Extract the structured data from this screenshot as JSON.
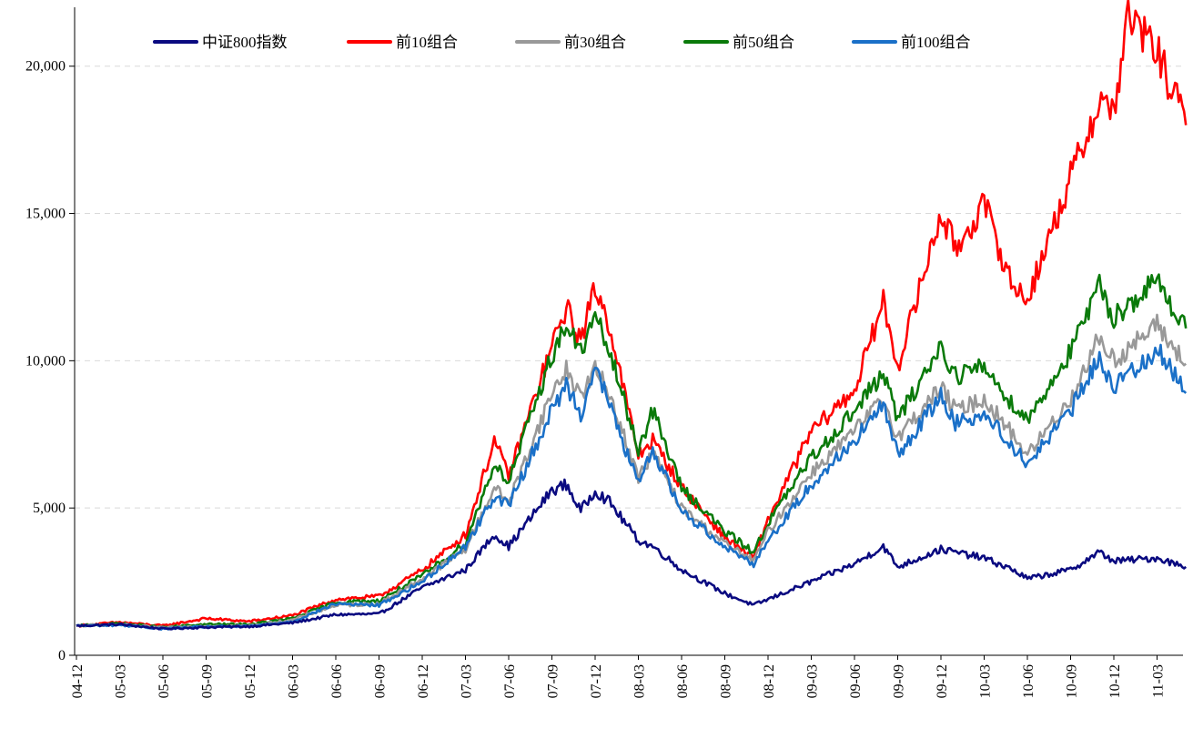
{
  "chart_data": {
    "type": "line",
    "title": "",
    "xlabel": "",
    "ylabel": "",
    "ylim": [
      0,
      22000
    ],
    "y_ticks": [
      0,
      5000,
      10000,
      15000,
      20000
    ],
    "y_tick_labels": [
      "0",
      "5,000",
      "10,000",
      "15,000",
      "20,000"
    ],
    "x_tick_labels": [
      "04-12",
      "05-03",
      "05-06",
      "05-09",
      "05-12",
      "06-03",
      "06-06",
      "06-09",
      "06-12",
      "07-03",
      "07-06",
      "07-09",
      "07-12",
      "08-03",
      "08-06",
      "08-09",
      "08-12",
      "09-03",
      "09-06",
      "09-09",
      "09-12",
      "10-03",
      "10-06",
      "10-09",
      "10-12",
      "11-03"
    ],
    "x_range": [
      "2004-12",
      "2011-05"
    ],
    "grid": "horizontal-dashed",
    "legend_position": "top",
    "series": [
      {
        "name": "中证800指数",
        "color": "#0a0a80",
        "points": [
          [
            "04-12",
            1000
          ],
          [
            "05-03",
            1050
          ],
          [
            "05-06",
            900
          ],
          [
            "05-09",
            950
          ],
          [
            "05-12",
            980
          ],
          [
            "06-03",
            1100
          ],
          [
            "06-06",
            1380
          ],
          [
            "06-09",
            1400
          ],
          [
            "06-12",
            2300
          ],
          [
            "07-03",
            2900
          ],
          [
            "07-05",
            4100
          ],
          [
            "07-06",
            3700
          ],
          [
            "07-09",
            5600
          ],
          [
            "07-10",
            5800
          ],
          [
            "07-11",
            4900
          ],
          [
            "07-12",
            5600
          ],
          [
            "08-01",
            5200
          ],
          [
            "08-03",
            3900
          ],
          [
            "08-04",
            3700
          ],
          [
            "08-06",
            2900
          ],
          [
            "08-09",
            2100
          ],
          [
            "08-11",
            1700
          ],
          [
            "08-12",
            1900
          ],
          [
            "09-03",
            2500
          ],
          [
            "09-06",
            3100
          ],
          [
            "09-08",
            3700
          ],
          [
            "09-09",
            3000
          ],
          [
            "09-12",
            3600
          ],
          [
            "10-01",
            3500
          ],
          [
            "10-03",
            3300
          ],
          [
            "10-05",
            2900
          ],
          [
            "10-06",
            2600
          ],
          [
            "10-09",
            2900
          ],
          [
            "10-11",
            3500
          ],
          [
            "10-12",
            3200
          ],
          [
            "11-03",
            3300
          ],
          [
            "11-05",
            3000
          ]
        ]
      },
      {
        "name": "前10组合",
        "color": "#ff0000",
        "points": [
          [
            "04-12",
            1000
          ],
          [
            "05-03",
            1120
          ],
          [
            "05-06",
            1000
          ],
          [
            "05-09",
            1250
          ],
          [
            "05-12",
            1150
          ],
          [
            "06-03",
            1350
          ],
          [
            "06-06",
            1900
          ],
          [
            "06-09",
            2000
          ],
          [
            "06-12",
            2900
          ],
          [
            "07-03",
            4100
          ],
          [
            "07-05",
            7300
          ],
          [
            "07-06",
            6100
          ],
          [
            "07-09",
            10500
          ],
          [
            "07-10",
            11800
          ],
          [
            "07-11",
            10700
          ],
          [
            "07-12",
            12500
          ],
          [
            "08-01",
            11200
          ],
          [
            "08-03",
            6800
          ],
          [
            "08-04",
            7300
          ],
          [
            "08-06",
            5700
          ],
          [
            "08-09",
            4000
          ],
          [
            "08-11",
            3300
          ],
          [
            "08-12",
            4600
          ],
          [
            "09-03",
            7600
          ],
          [
            "09-06",
            9000
          ],
          [
            "09-08",
            12000
          ],
          [
            "09-09",
            9800
          ],
          [
            "09-12",
            15000
          ],
          [
            "10-01",
            13800
          ],
          [
            "10-03",
            15300
          ],
          [
            "10-05",
            12500
          ],
          [
            "10-06",
            12100
          ],
          [
            "10-09",
            16200
          ],
          [
            "10-11",
            18800
          ],
          [
            "10-12",
            18500
          ],
          [
            "11-01",
            21700
          ],
          [
            "11-03",
            20500
          ],
          [
            "11-05",
            18000
          ]
        ]
      },
      {
        "name": "前30组合",
        "color": "#999999",
        "points": [
          [
            "04-12",
            1000
          ],
          [
            "05-03",
            1050
          ],
          [
            "05-06",
            930
          ],
          [
            "05-09",
            1000
          ],
          [
            "05-12",
            1000
          ],
          [
            "06-03",
            1200
          ],
          [
            "06-06",
            1700
          ],
          [
            "06-09",
            1750
          ],
          [
            "06-12",
            2600
          ],
          [
            "07-03",
            3600
          ],
          [
            "07-05",
            5700
          ],
          [
            "07-06",
            5200
          ],
          [
            "07-09",
            8900
          ],
          [
            "07-10",
            9700
          ],
          [
            "07-11",
            8800
          ],
          [
            "07-12",
            9700
          ],
          [
            "08-01",
            8900
          ],
          [
            "08-03",
            6000
          ],
          [
            "08-04",
            6900
          ],
          [
            "08-06",
            5000
          ],
          [
            "08-09",
            3800
          ],
          [
            "08-11",
            3200
          ],
          [
            "08-12",
            4200
          ],
          [
            "09-03",
            6200
          ],
          [
            "09-06",
            7600
          ],
          [
            "09-08",
            8700
          ],
          [
            "09-09",
            7400
          ],
          [
            "09-12",
            9100
          ],
          [
            "10-01",
            8300
          ],
          [
            "10-03",
            8700
          ],
          [
            "10-05",
            7500
          ],
          [
            "10-06",
            6800
          ],
          [
            "10-09",
            8700
          ],
          [
            "10-11",
            10800
          ],
          [
            "10-12",
            10000
          ],
          [
            "11-03",
            11200
          ],
          [
            "11-05",
            9900
          ]
        ]
      },
      {
        "name": "前50组合",
        "color": "#0a7a0a",
        "points": [
          [
            "04-12",
            1000
          ],
          [
            "05-03",
            1080
          ],
          [
            "05-06",
            950
          ],
          [
            "05-09",
            1050
          ],
          [
            "05-12",
            1050
          ],
          [
            "06-03",
            1250
          ],
          [
            "06-06",
            1800
          ],
          [
            "06-09",
            1850
          ],
          [
            "06-12",
            2700
          ],
          [
            "07-03",
            3800
          ],
          [
            "07-05",
            6500
          ],
          [
            "07-06",
            5900
          ],
          [
            "07-09",
            10200
          ],
          [
            "07-10",
            11200
          ],
          [
            "07-11",
            10300
          ],
          [
            "07-12",
            11500
          ],
          [
            "08-01",
            10300
          ],
          [
            "08-03",
            7000
          ],
          [
            "08-04",
            8300
          ],
          [
            "08-06",
            5700
          ],
          [
            "08-09",
            4200
          ],
          [
            "08-11",
            3500
          ],
          [
            "08-12",
            4500
          ],
          [
            "09-03",
            6700
          ],
          [
            "09-06",
            8300
          ],
          [
            "09-08",
            9600
          ],
          [
            "09-09",
            8000
          ],
          [
            "09-12",
            10500
          ],
          [
            "10-01",
            9500
          ],
          [
            "10-03",
            9800
          ],
          [
            "10-05",
            8500
          ],
          [
            "10-06",
            8000
          ],
          [
            "10-09",
            10300
          ],
          [
            "10-11",
            12500
          ],
          [
            "10-12",
            11500
          ],
          [
            "11-03",
            12700
          ],
          [
            "11-05",
            11100
          ]
        ]
      },
      {
        "name": "前100组合",
        "color": "#1a70c8",
        "points": [
          [
            "04-12",
            1000
          ],
          [
            "05-03",
            1030
          ],
          [
            "05-06",
            900
          ],
          [
            "05-09",
            970
          ],
          [
            "05-12",
            980
          ],
          [
            "06-03",
            1150
          ],
          [
            "06-06",
            1750
          ],
          [
            "06-09",
            1700
          ],
          [
            "06-12",
            2500
          ],
          [
            "07-03",
            3700
          ],
          [
            "07-05",
            5400
          ],
          [
            "07-06",
            5100
          ],
          [
            "07-09",
            8300
          ],
          [
            "07-10",
            9200
          ],
          [
            "07-11",
            8200
          ],
          [
            "07-12",
            9800
          ],
          [
            "08-01",
            8500
          ],
          [
            "08-03",
            5800
          ],
          [
            "08-04",
            7000
          ],
          [
            "08-06",
            4900
          ],
          [
            "08-09",
            3700
          ],
          [
            "08-11",
            3100
          ],
          [
            "08-12",
            3900
          ],
          [
            "09-03",
            5800
          ],
          [
            "09-06",
            7300
          ],
          [
            "09-08",
            8500
          ],
          [
            "09-09",
            6800
          ],
          [
            "09-12",
            8800
          ],
          [
            "10-01",
            7900
          ],
          [
            "10-03",
            8200
          ],
          [
            "10-05",
            7100
          ],
          [
            "10-06",
            6500
          ],
          [
            "10-09",
            8300
          ],
          [
            "10-11",
            10100
          ],
          [
            "10-12",
            9100
          ],
          [
            "11-03",
            10400
          ],
          [
            "11-05",
            8900
          ]
        ]
      }
    ]
  }
}
